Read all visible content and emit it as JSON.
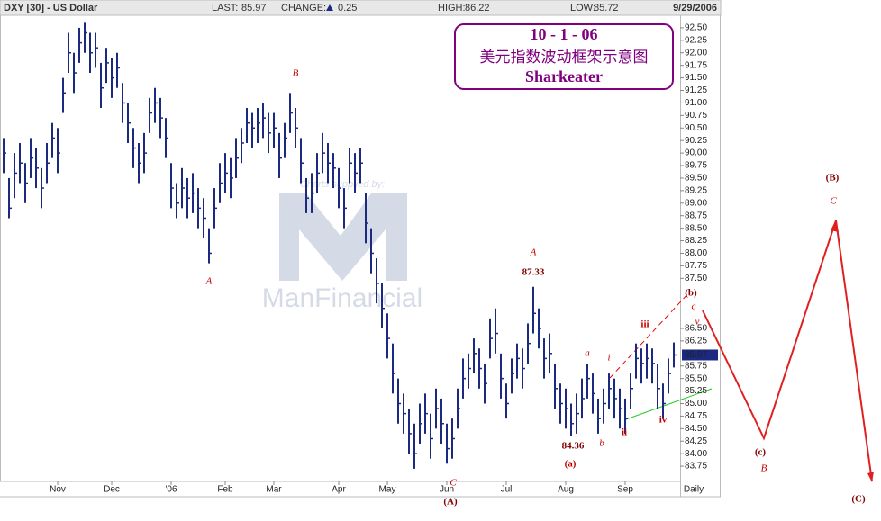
{
  "chart_data": {
    "type": "ohlc",
    "symbol": "DXY [30] - US Dollar",
    "last": {
      "label": "LAST:",
      "value": 85.97
    },
    "change": {
      "label": "CHANGE:",
      "value": 0.25
    },
    "high_stat": {
      "label": "HIGH:",
      "value": 86.22
    },
    "low_stat": {
      "label": "LOW:",
      "value": 85.72
    },
    "date": "9/29/2006",
    "frequency": "Daily",
    "title_box": {
      "date": "10 - 1 - 06",
      "title": "美元指数波动框架示意图",
      "author": "Sharkeater"
    },
    "watermark": {
      "caption": "Charts supplied by:",
      "brand": "ManFinancial"
    },
    "color": "#1b2a80",
    "categories": [
      null,
      null,
      null,
      null,
      null,
      null,
      null,
      null,
      null,
      null,
      "Nov",
      null,
      null,
      null,
      null,
      null,
      null,
      null,
      null,
      null,
      "Dec",
      null,
      null,
      null,
      null,
      null,
      null,
      null,
      null,
      null,
      null,
      "'06",
      null,
      null,
      null,
      null,
      null,
      null,
      null,
      null,
      null,
      "Feb",
      null,
      null,
      null,
      null,
      null,
      null,
      null,
      null,
      "Mar",
      null,
      null,
      null,
      null,
      null,
      null,
      null,
      null,
      null,
      null,
      null,
      "Apr",
      null,
      null,
      null,
      null,
      null,
      null,
      null,
      null,
      "May",
      null,
      null,
      null,
      null,
      null,
      null,
      null,
      null,
      null,
      null,
      "Jun",
      null,
      null,
      null,
      null,
      null,
      null,
      null,
      null,
      null,
      null,
      "Jul",
      null,
      null,
      null,
      null,
      null,
      null,
      null,
      null,
      null,
      null,
      "Aug",
      null,
      null,
      null,
      null,
      null,
      null,
      null,
      null,
      null,
      null,
      "Sep",
      null,
      null,
      null,
      null,
      null,
      null,
      null,
      null,
      null
    ],
    "high": [
      90.3,
      89.5,
      90.0,
      90.2,
      89.8,
      90.3,
      90.1,
      89.7,
      90.2,
      90.6,
      90.5,
      91.5,
      92.4,
      92.0,
      92.5,
      92.6,
      92.4,
      92.4,
      91.8,
      92.1,
      91.9,
      92.0,
      91.4,
      91.0,
      90.5,
      90.2,
      90.4,
      91.1,
      91.3,
      91.1,
      90.7,
      89.8,
      89.4,
      89.7,
      89.5,
      89.6,
      89.3,
      89.1,
      88.5,
      89.3,
      89.8,
      90.0,
      89.9,
      90.3,
      90.5,
      90.9,
      90.8,
      90.9,
      91.0,
      90.8,
      90.8,
      90.4,
      90.6,
      91.2,
      90.9,
      90.3,
      89.5,
      89.6,
      90.0,
      90.4,
      90.2,
      90.0,
      89.7,
      89.3,
      90.1,
      90.0,
      90.1,
      89.2,
      88.5,
      87.9,
      87.4,
      86.8,
      86.2,
      85.5,
      85.2,
      84.9,
      84.6,
      85.0,
      85.2,
      84.8,
      85.3,
      85.1,
      84.6,
      84.7,
      85.3,
      85.9,
      86.0,
      86.3,
      86.1,
      85.8,
      86.7,
      86.9,
      86.0,
      85.4,
      85.9,
      86.2,
      86.1,
      86.6,
      87.33,
      86.9,
      86.3,
      86.4,
      85.8,
      85.4,
      85.3,
      85.0,
      85.2,
      85.5,
      85.8,
      85.6,
      85.1,
      85.3,
      85.6,
      85.5,
      85.3,
      85.1,
      85.6,
      86.2,
      86.1,
      86.2,
      86.1,
      85.8,
      85.4,
      85.9,
      86.22
    ],
    "low": [
      89.6,
      88.7,
      89.1,
      89.4,
      89.0,
      89.5,
      89.3,
      88.9,
      89.4,
      89.9,
      89.6,
      90.8,
      91.6,
      91.2,
      91.8,
      92.0,
      91.6,
      91.7,
      90.9,
      91.4,
      91.1,
      91.3,
      90.6,
      90.2,
      89.7,
      89.4,
      89.6,
      90.4,
      90.6,
      90.3,
      89.9,
      88.9,
      88.7,
      88.9,
      88.7,
      88.8,
      88.5,
      88.3,
      87.8,
      88.5,
      89.0,
      89.2,
      89.1,
      89.5,
      89.8,
      90.2,
      90.1,
      90.2,
      90.3,
      90.0,
      90.1,
      89.5,
      89.9,
      90.4,
      90.1,
      89.4,
      88.8,
      88.8,
      89.2,
      89.6,
      89.4,
      89.3,
      88.9,
      88.5,
      89.4,
      89.2,
      89.4,
      88.2,
      87.6,
      87.0,
      86.5,
      85.9,
      85.2,
      84.6,
      84.4,
      84.0,
      83.7,
      84.2,
      84.4,
      83.9,
      84.5,
      84.2,
      83.8,
      83.9,
      84.5,
      85.1,
      85.3,
      85.6,
      85.3,
      85.0,
      85.9,
      86.0,
      85.1,
      84.7,
      85.2,
      85.5,
      85.3,
      85.8,
      86.4,
      86.1,
      85.5,
      85.6,
      84.9,
      84.6,
      84.5,
      84.36,
      84.4,
      84.7,
      85.1,
      84.8,
      84.4,
      84.6,
      84.9,
      84.7,
      84.5,
      84.4,
      84.9,
      85.5,
      85.4,
      85.5,
      85.4,
      84.9,
      84.7,
      85.2,
      85.72
    ],
    "close": [
      90.0,
      88.9,
      89.6,
      89.8,
      89.4,
      89.9,
      89.7,
      89.3,
      89.8,
      90.3,
      90.0,
      91.2,
      92.0,
      91.6,
      92.2,
      92.4,
      92.0,
      92.1,
      91.3,
      91.8,
      91.5,
      91.7,
      91.0,
      90.6,
      90.1,
      89.8,
      90.0,
      90.8,
      91.0,
      90.7,
      90.3,
      89.3,
      89.0,
      89.3,
      89.1,
      89.2,
      88.9,
      88.7,
      88.0,
      88.9,
      89.4,
      89.6,
      89.5,
      89.9,
      90.2,
      90.6,
      90.5,
      90.6,
      90.7,
      90.4,
      90.5,
      89.9,
      90.3,
      90.8,
      90.5,
      89.8,
      89.1,
      89.2,
      89.6,
      90.0,
      89.8,
      89.7,
      89.3,
      88.9,
      89.8,
      89.6,
      89.8,
      88.6,
      88.0,
      87.4,
      86.9,
      86.3,
      85.6,
      85.0,
      84.8,
      84.4,
      84.0,
      84.6,
      84.8,
      84.3,
      84.9,
      84.6,
      84.1,
      84.3,
      84.9,
      85.5,
      85.7,
      86.0,
      85.7,
      85.4,
      86.3,
      86.4,
      85.5,
      85.0,
      85.6,
      85.9,
      85.7,
      86.2,
      86.8,
      86.5,
      85.9,
      86.0,
      85.3,
      85.0,
      84.9,
      84.6,
      84.8,
      85.1,
      85.5,
      85.2,
      84.7,
      85.0,
      85.3,
      85.1,
      84.9,
      84.7,
      85.3,
      85.9,
      85.8,
      85.9,
      85.8,
      85.3,
      85.0,
      85.6,
      85.97
    ],
    "ylim": [
      83.5,
      92.75
    ],
    "yticks": [
      {
        "value": 83.75,
        "label": "83.75"
      },
      {
        "value": 84,
        "label": "84.00"
      },
      {
        "value": 84.25,
        "label": "84.25"
      },
      {
        "value": 84.5,
        "label": "84.50"
      },
      {
        "value": 84.75,
        "label": "84.75"
      },
      {
        "value": 85,
        "label": "85.00"
      },
      {
        "value": 85.25,
        "label": "85.25"
      },
      {
        "value": 85.5,
        "label": "85.50"
      },
      {
        "value": 85.75,
        "label": "85.75"
      },
      {
        "value": 86.25,
        "label": "86.25"
      },
      {
        "value": 86.5,
        "label": "86.50"
      },
      {
        "value": 87.5,
        "label": "87.50"
      },
      {
        "value": 87.75,
        "label": "87.75"
      },
      {
        "value": 88,
        "label": "88.00"
      },
      {
        "value": 88.25,
        "label": "88.25"
      },
      {
        "value": 88.5,
        "label": "88.50"
      },
      {
        "value": 88.75,
        "label": "88.75"
      },
      {
        "value": 89,
        "label": "89.00"
      },
      {
        "value": 89.25,
        "label": "89.25"
      },
      {
        "value": 89.5,
        "label": "89.50"
      },
      {
        "value": 89.75,
        "label": "89.75"
      },
      {
        "value": 90,
        "label": "90.00"
      },
      {
        "value": 90.25,
        "label": "90.25"
      },
      {
        "value": 90.5,
        "label": "90.50"
      },
      {
        "value": 90.75,
        "label": "90.75"
      },
      {
        "value": 91,
        "label": "91.00"
      },
      {
        "value": 91.25,
        "label": "91.25"
      },
      {
        "value": 91.5,
        "label": "91.50"
      },
      {
        "value": 91.75,
        "label": "91.75"
      },
      {
        "value": 92,
        "label": "92.00"
      },
      {
        "value": 92.25,
        "label": "92.25"
      },
      {
        "value": 92.5,
        "label": "92.50"
      }
    ],
    "annotations": [
      {
        "text": "B",
        "color": "#c00000"
      },
      {
        "text": "A",
        "color": "#c00000"
      },
      {
        "text": "A",
        "color": "#c00000"
      },
      {
        "text": "87.33",
        "color": "#800000"
      },
      {
        "text": "C",
        "color": "#c00000"
      },
      {
        "text": "(A)",
        "color": "#800000"
      },
      {
        "text": "84.36",
        "color": "#800000"
      },
      {
        "text": "(a)",
        "color": "#c00000"
      },
      {
        "text": "b",
        "color": "#c00000"
      },
      {
        "text": "a",
        "color": "#c00000"
      },
      {
        "text": "i",
        "color": "#c00000"
      },
      {
        "text": "ii",
        "color": "#c00000"
      },
      {
        "text": "iii",
        "color": "#c00000"
      },
      {
        "text": "iv",
        "color": "#c00000"
      },
      {
        "text": "v",
        "color": "#c00000"
      },
      {
        "text": "(b)",
        "color": "#800000"
      },
      {
        "text": "c",
        "color": "#c00000"
      },
      {
        "text": "(c)",
        "color": "#800000"
      },
      {
        "text": "B",
        "color": "#c00000"
      },
      {
        "text": "(B)",
        "color": "#800000"
      },
      {
        "text": "C",
        "color": "#c00000"
      },
      {
        "text": "(C)",
        "color": "#800000"
      }
    ]
  }
}
